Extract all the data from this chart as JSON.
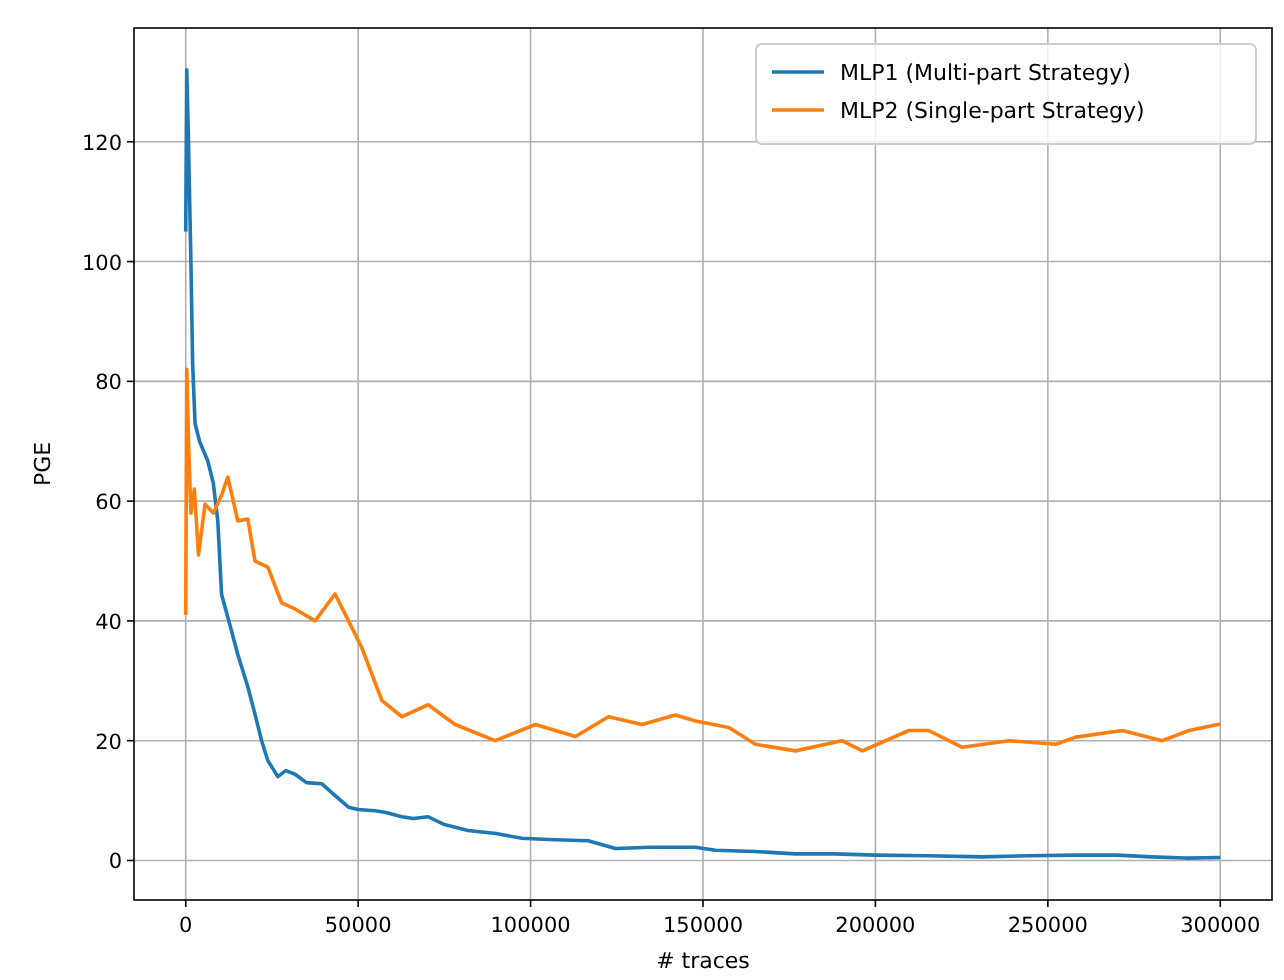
{
  "chart_data": {
    "type": "line",
    "xlabel": "# traces",
    "ylabel": "PGE",
    "xlim": [
      -15000,
      315000
    ],
    "xticks": [
      0,
      50000,
      100000,
      150000,
      200000,
      250000,
      300000
    ],
    "ylim": [
      -6.6,
      139
    ],
    "yticks": [
      0,
      20,
      40,
      60,
      80,
      100,
      120
    ],
    "grid": true,
    "legend": "top right",
    "series": [
      {
        "name": "MLP1 (Multi-part Strategy)",
        "color": "#1f77b4",
        "x": [
          0,
          300,
          800,
          1500,
          2000,
          2700,
          4000,
          6400,
          8000,
          9300,
          10400,
          12500,
          15100,
          18000,
          20100,
          22000,
          23800,
          26700,
          29000,
          31700,
          35000,
          39500,
          43000,
          47200,
          50000,
          54900,
          58000,
          62700,
          66000,
          70300,
          75000,
          81800,
          90000,
          97500,
          105000,
          116700,
          124600,
          135000,
          147800,
          153600,
          165000,
          176800,
          188000,
          200000,
          215000,
          231000,
          245000,
          258000,
          270000,
          280000,
          290000,
          300000
        ],
        "values": [
          105,
          132,
          120,
          100,
          83,
          73,
          70,
          66.7,
          63,
          56.7,
          44.4,
          40,
          34.4,
          29,
          24.4,
          20,
          16.7,
          14,
          15,
          14.4,
          13,
          12.8,
          11,
          8.9,
          8.5,
          8.3,
          8,
          7.3,
          7,
          7.3,
          6,
          5,
          4.5,
          3.7,
          3.5,
          3.3,
          2,
          2.2,
          2.2,
          1.7,
          1.5,
          1.1,
          1.1,
          0.9,
          0.8,
          0.6,
          0.8,
          0.9,
          0.9,
          0.6,
          0.4,
          0.5
        ]
      },
      {
        "name": "MLP2 (Single-part Strategy)",
        "color": "#ff7f0e",
        "x": [
          0,
          300,
          800,
          1500,
          2500,
          3700,
          5600,
          8000,
          10400,
          12200,
          15100,
          18000,
          20100,
          23800,
          27800,
          31700,
          37500,
          43300,
          47200,
          51000,
          56900,
          62700,
          70300,
          78100,
          89700,
          101400,
          113000,
          122600,
          132300,
          142000,
          147800,
          157500,
          165200,
          176800,
          190300,
          196200,
          209700,
          215400,
          225200,
          238700,
          252300,
          258100,
          271600,
          283200,
          290900,
          300000
        ],
        "values": [
          41,
          82,
          70,
          58,
          62,
          51,
          59.5,
          58,
          61,
          64,
          56.7,
          57,
          50,
          49,
          43,
          42,
          40,
          44.5,
          40,
          35.6,
          26.7,
          24,
          26,
          22.7,
          20,
          22.7,
          20.7,
          24,
          22.7,
          24.3,
          23.3,
          22.2,
          19.4,
          18.3,
          20,
          18.3,
          21.7,
          21.7,
          18.9,
          20,
          19.4,
          20.6,
          21.7,
          20,
          21.7,
          22.8
        ]
      }
    ]
  }
}
